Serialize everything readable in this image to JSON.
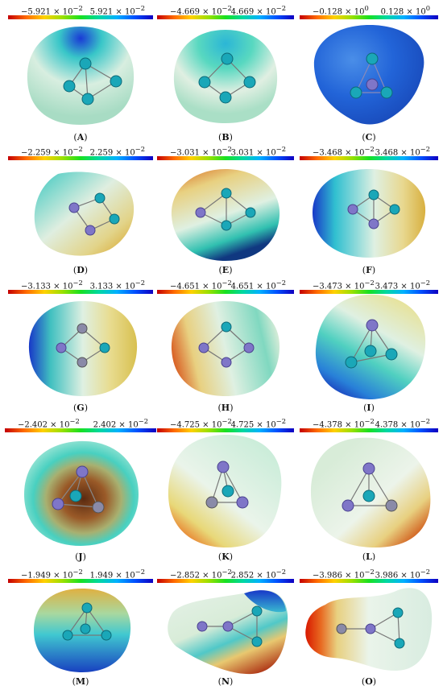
{
  "panels": [
    {
      "label": "A",
      "min": "−5.921 × 10",
      "max": "5.921 × 10",
      "exp": "−2"
    },
    {
      "label": "B",
      "min": "−4.669 × 10",
      "max": "4.669 × 10",
      "exp": "−2"
    },
    {
      "label": "C",
      "min": "−0.128 × 10",
      "max": "0.128 × 10",
      "exp": "0"
    },
    {
      "label": "D",
      "min": "−2.259 × 10",
      "max": "2.259 × 10",
      "exp": "−2"
    },
    {
      "label": "E",
      "min": "−3.031 × 10",
      "max": "3.031 × 10",
      "exp": "−2"
    },
    {
      "label": "F",
      "min": "−3.468 × 10",
      "max": "3.468 × 10",
      "exp": "−2"
    },
    {
      "label": "G",
      "min": "−3.133 × 10",
      "max": "3.133 × 10",
      "exp": "−2"
    },
    {
      "label": "H",
      "min": "−4.651 × 10",
      "max": "4.651 × 10",
      "exp": "−2"
    },
    {
      "label": "I",
      "min": "−3.473 × 10",
      "max": "3.473 × 10",
      "exp": "−2"
    },
    {
      "label": "J",
      "min": "−2.402 × 10",
      "max": "2.402 × 10",
      "exp": "−2"
    },
    {
      "label": "K",
      "min": "−4.725 × 10",
      "max": "4.725 × 10",
      "exp": "−2"
    },
    {
      "label": "L",
      "min": "−4.378 × 10",
      "max": "4.378 × 10",
      "exp": "−2"
    },
    {
      "label": "M",
      "min": "−1.949 × 10",
      "max": "1.949 × 10",
      "exp": "−2"
    },
    {
      "label": "N",
      "min": "−2.852 × 10",
      "max": "2.852 × 10",
      "exp": "−2"
    },
    {
      "label": "O",
      "min": "−3.986 × 10",
      "max": "3.986 × 10",
      "exp": "−2"
    }
  ],
  "caption_open": "(",
  "caption_close": ")",
  "colors": {
    "scale_low": "#c40000",
    "scale_mid": "#18e020",
    "scale_high": "#1000c0",
    "atom_teal": "#1aa7b8",
    "atom_purple": "#7f76c8"
  }
}
